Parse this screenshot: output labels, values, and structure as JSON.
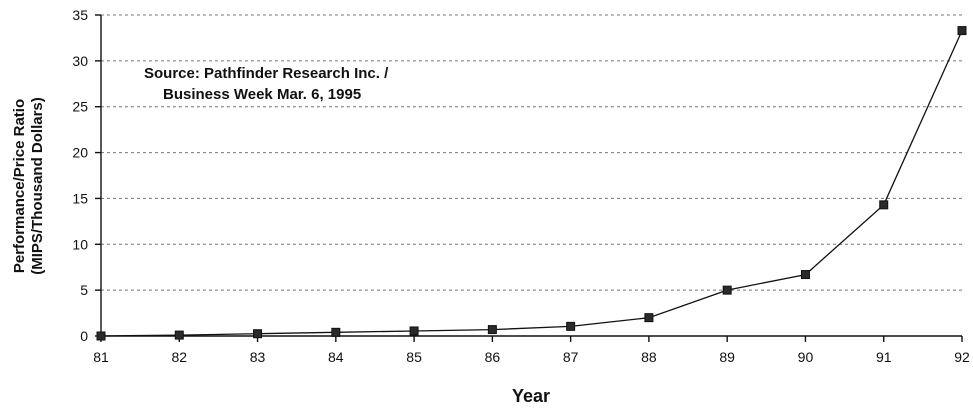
{
  "chart_data": {
    "type": "line",
    "categories": [
      "81",
      "82",
      "83",
      "84",
      "85",
      "86",
      "87",
      "88",
      "89",
      "90",
      "91",
      "92"
    ],
    "series": [
      {
        "values": [
          0.0,
          0.1,
          0.25,
          0.4,
          0.55,
          0.7,
          1.05,
          2.0,
          5.0,
          6.7,
          14.3,
          33.3
        ]
      }
    ],
    "xlabel": "Year",
    "ylabel_lines": [
      "Performance/Price Ratio",
      "(MIPS/Thousand Dollars)"
    ],
    "annotation_lines": [
      "Source: Pathfinder Research Inc. /",
      "Business Week Mar. 6, 1995"
    ],
    "yticks": [
      0,
      5,
      10,
      15,
      20,
      25,
      30,
      35
    ],
    "ylim": [
      0,
      35
    ],
    "grid": "horizontal dashed",
    "marker": "square",
    "colors": {
      "line": "#111111",
      "marker": "#2a2a2a",
      "grid": "#777777"
    }
  }
}
